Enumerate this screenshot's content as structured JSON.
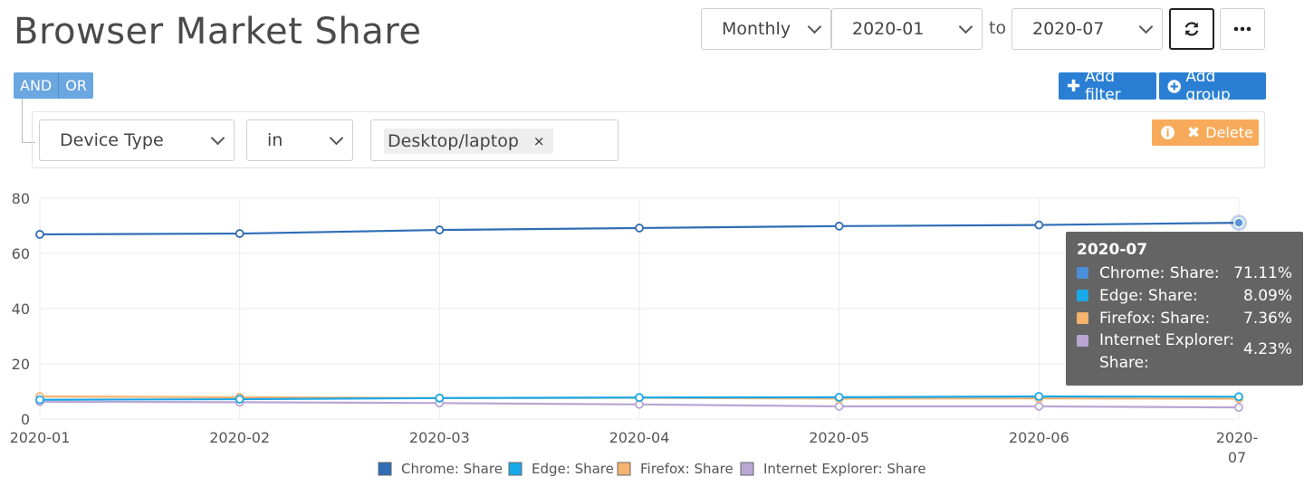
{
  "page": {
    "title": "Browser Market Share"
  },
  "toolbar": {
    "period": "Monthly",
    "from": "2020-01",
    "to_label": "to",
    "to": "2020-07",
    "refresh_icon": "refresh-icon",
    "more_icon": "ellipsis-icon"
  },
  "filters": {
    "and_label": "AND",
    "or_label": "OR",
    "add_filter_label": "Add filter",
    "add_group_label": "Add group",
    "field": "Device Type",
    "operator": "in",
    "value_tag": "Desktop/laptop",
    "remove_tag_glyph": "×",
    "delete_label": "Delete"
  },
  "tooltip": {
    "title": "2020-07",
    "rows": [
      {
        "label": "Chrome: Share:",
        "value": "71.11%",
        "color": "#4a8fd9"
      },
      {
        "label": "Edge: Share:",
        "value": "8.09%",
        "color": "#1aa9e8"
      },
      {
        "label": "Firefox: Share:",
        "value": "7.36%",
        "color": "#f5b36d"
      },
      {
        "label": "Internet Explorer: Share:",
        "value": "4.23%",
        "color": "#b9a6d3"
      }
    ]
  },
  "chart_data": {
    "type": "line",
    "x": [
      "2020-01",
      "2020-02",
      "2020-03",
      "2020-04",
      "2020-05",
      "2020-06",
      "2020-07"
    ],
    "ylim": [
      0,
      80
    ],
    "yticks": [
      0,
      20,
      40,
      60,
      80
    ],
    "grid": true,
    "legend_position": "bottom",
    "series": [
      {
        "name": "Chrome: Share",
        "color": "#2f6db5",
        "values": [
          66.9,
          67.2,
          68.5,
          69.2,
          69.9,
          70.3,
          71.11
        ]
      },
      {
        "name": "Edge: Share",
        "color": "#1aa9e8",
        "values": [
          7.0,
          7.2,
          7.6,
          7.8,
          7.9,
          8.2,
          8.09
        ]
      },
      {
        "name": "Firefox: Share",
        "color": "#f5b36d",
        "values": [
          8.2,
          7.9,
          7.6,
          7.7,
          7.4,
          7.5,
          7.36
        ]
      },
      {
        "name": "Internet Explorer: Share",
        "color": "#b9a6d3",
        "values": [
          6.3,
          6.1,
          5.8,
          5.3,
          4.6,
          4.6,
          4.23
        ]
      }
    ]
  }
}
